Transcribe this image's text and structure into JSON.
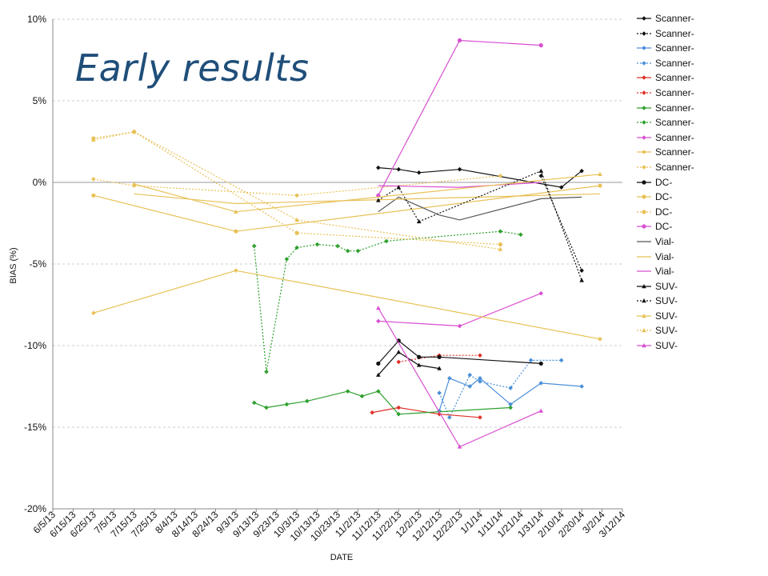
{
  "overlay_title": "Early results",
  "colors": {
    "black": "#111111",
    "blue": "#4a8fd9",
    "red": "#e0302a",
    "green": "#2ea02e",
    "magenta": "#d84fd0",
    "yellow": "#e8c157",
    "gray": "#555555",
    "grid": "#cccccc"
  },
  "chart_data": {
    "type": "line",
    "title": "",
    "xlabel": "DATE",
    "ylabel": "BIAS (%)",
    "ylim": [
      -20,
      10
    ],
    "yticks": [
      "10%",
      "5%",
      "0%",
      "-5%",
      "-10%",
      "-15%",
      "-20%"
    ],
    "ytick_values": [
      10,
      5,
      0,
      -5,
      -10,
      -15,
      -20
    ],
    "xlim": [
      "2013-06-05",
      "2014-03-12"
    ],
    "xticks": [
      "6/5/13",
      "6/15/13",
      "6/25/13",
      "7/5/13",
      "7/15/13",
      "7/25/13",
      "8/4/13",
      "8/14/13",
      "8/24/13",
      "9/3/13",
      "9/13/13",
      "9/23/13",
      "10/3/13",
      "10/13/13",
      "10/23/13",
      "11/2/13",
      "11/12/13",
      "11/22/13",
      "12/2/13",
      "12/12/13",
      "12/22/13",
      "1/1/14",
      "1/11/14",
      "1/21/14",
      "1/31/14",
      "2/10/14",
      "2/20/14",
      "3/2/14",
      "3/12/14"
    ],
    "grid": "horizontal dashed",
    "legend_position": "right",
    "series": [
      {
        "name": "Scanner-",
        "color": "black",
        "dash": "solid",
        "marker": "diamond",
        "points": [
          [
            "2013-11-12",
            0.9
          ],
          [
            "2013-11-22",
            0.8
          ],
          [
            "2013-12-02",
            0.6
          ],
          [
            "2013-12-22",
            0.8
          ],
          [
            "2014-02-10",
            -0.3
          ],
          [
            "2014-02-20",
            0.7
          ]
        ]
      },
      {
        "name": "Scanner-",
        "color": "black",
        "dash": "dotted",
        "marker": "diamond",
        "points": [
          [
            "2014-01-31",
            0.4
          ],
          [
            "2014-02-20",
            -5.4
          ]
        ]
      },
      {
        "name": "Scanner-",
        "color": "blue",
        "dash": "solid",
        "marker": "diamond",
        "points": [
          [
            "2013-12-12",
            -14.0
          ],
          [
            "2013-12-17",
            -12.0
          ],
          [
            "2013-12-27",
            -12.5
          ],
          [
            "2014-01-01",
            -12.0
          ],
          [
            "2014-01-16",
            -13.6
          ],
          [
            "2014-01-31",
            -12.3
          ],
          [
            "2014-02-20",
            -12.5
          ]
        ]
      },
      {
        "name": "Scanner-",
        "color": "blue",
        "dash": "dotted",
        "marker": "diamond",
        "points": [
          [
            "2013-12-12",
            -12.9
          ],
          [
            "2013-12-17",
            -14.4
          ],
          [
            "2013-12-27",
            -11.8
          ],
          [
            "2014-01-01",
            -12.2
          ],
          [
            "2014-01-16",
            -12.6
          ],
          [
            "2014-01-26",
            -10.9
          ],
          [
            "2014-02-10",
            -10.9
          ]
        ]
      },
      {
        "name": "Scanner-",
        "color": "red",
        "dash": "solid",
        "marker": "diamond",
        "points": [
          [
            "2013-11-09",
            -14.1
          ],
          [
            "2013-11-22",
            -13.8
          ],
          [
            "2013-12-12",
            -14.2
          ],
          [
            "2014-01-01",
            -14.4
          ]
        ]
      },
      {
        "name": "Scanner-",
        "color": "red",
        "dash": "dotted",
        "marker": "diamond",
        "points": [
          [
            "2013-11-22",
            -11.0
          ],
          [
            "2013-12-12",
            -10.6
          ],
          [
            "2014-01-01",
            -10.6
          ]
        ]
      },
      {
        "name": "Scanner-",
        "color": "green",
        "dash": "solid",
        "marker": "diamond",
        "points": [
          [
            "2013-09-12",
            -13.5
          ],
          [
            "2013-09-18",
            -13.8
          ],
          [
            "2013-09-28",
            -13.6
          ],
          [
            "2013-10-08",
            -13.4
          ],
          [
            "2013-10-28",
            -12.8
          ],
          [
            "2013-11-04",
            -13.1
          ],
          [
            "2013-11-12",
            -12.8
          ],
          [
            "2013-11-22",
            -14.2
          ],
          [
            "2014-01-16",
            -13.8
          ]
        ]
      },
      {
        "name": "Scanner-",
        "color": "green",
        "dash": "dotted",
        "marker": "diamond",
        "points": [
          [
            "2013-09-12",
            -3.9
          ],
          [
            "2013-09-18",
            -11.6
          ],
          [
            "2013-09-28",
            -4.7
          ],
          [
            "2013-10-03",
            -4.0
          ],
          [
            "2013-10-13",
            -3.8
          ],
          [
            "2013-10-23",
            -3.9
          ],
          [
            "2013-10-28",
            -4.2
          ],
          [
            "2013-11-02",
            -4.2
          ],
          [
            "2013-11-16",
            -3.6
          ],
          [
            "2014-01-11",
            -3.0
          ],
          [
            "2014-01-21",
            -3.2
          ]
        ]
      },
      {
        "name": "Scanner-",
        "color": "magenta",
        "dash": "solid",
        "marker": "diamond",
        "points": [
          [
            "2013-11-12",
            -8.5
          ],
          [
            "2013-12-22",
            -8.8
          ],
          [
            "2014-01-31",
            -6.8
          ]
        ]
      },
      {
        "name": "Scanner-",
        "color": "yellow",
        "dash": "solid",
        "marker": "diamond",
        "points": [
          [
            "2013-06-25",
            -8.0
          ],
          [
            "2013-09-03",
            -5.4
          ],
          [
            "2014-03-01",
            -9.6
          ]
        ]
      },
      {
        "name": "Scanner-",
        "color": "yellow",
        "dash": "dotted",
        "marker": "diamond",
        "points": [
          [
            "2013-06-25",
            0.2
          ],
          [
            "2013-07-15",
            -0.2
          ],
          [
            "2013-10-03",
            -0.8
          ],
          [
            "2014-01-11",
            0.4
          ]
        ]
      },
      {
        "name": "DC-",
        "color": "black",
        "dash": "solid",
        "marker": "circle",
        "points": [
          [
            "2013-11-12",
            -11.1
          ],
          [
            "2013-11-22",
            -9.7
          ],
          [
            "2013-12-02",
            -10.7
          ],
          [
            "2013-12-12",
            -10.7
          ],
          [
            "2014-01-31",
            -11.1
          ]
        ]
      },
      {
        "name": "DC-",
        "color": "yellow",
        "dash": "solid",
        "marker": "circle",
        "points": [
          [
            "2013-06-25",
            -0.8
          ],
          [
            "2013-09-03",
            -3.0
          ],
          [
            "2014-03-01",
            -0.2
          ]
        ]
      },
      {
        "name": "DC-",
        "color": "yellow",
        "dash": "dotted",
        "marker": "circle",
        "points": [
          [
            "2013-06-25",
            2.7
          ],
          [
            "2013-07-15",
            3.1
          ],
          [
            "2013-10-03",
            -3.1
          ],
          [
            "2014-01-11",
            -3.8
          ]
        ]
      },
      {
        "name": "DC-",
        "color": "magenta",
        "dash": "solid",
        "marker": "circle",
        "points": [
          [
            "2013-11-12",
            -0.8
          ],
          [
            "2013-12-22",
            8.7
          ],
          [
            "2014-01-31",
            8.4
          ]
        ]
      },
      {
        "name": "Vial-",
        "color": "gray",
        "dash": "solid",
        "marker": "none",
        "points": [
          [
            "2013-11-12",
            -1.8
          ],
          [
            "2013-11-22",
            -0.9
          ],
          [
            "2013-12-12",
            -2.0
          ],
          [
            "2013-12-22",
            -2.3
          ],
          [
            "2014-01-31",
            -1.0
          ],
          [
            "2014-02-20",
            -0.9
          ]
        ]
      },
      {
        "name": "Vial-",
        "color": "yellow",
        "dash": "solid",
        "marker": "none",
        "points": [
          [
            "2013-07-15",
            -0.7
          ],
          [
            "2013-09-03",
            -1.3
          ],
          [
            "2014-03-01",
            -0.7
          ]
        ]
      },
      {
        "name": "Vial-",
        "color": "magenta",
        "dash": "solid",
        "marker": "none",
        "points": [
          [
            "2013-11-12",
            -0.2
          ],
          [
            "2013-12-22",
            -0.3
          ],
          [
            "2014-01-31",
            0.0
          ]
        ]
      },
      {
        "name": "SUV-",
        "color": "black",
        "dash": "solid",
        "marker": "triangle",
        "points": [
          [
            "2013-11-12",
            -11.8
          ],
          [
            "2013-11-22",
            -10.4
          ],
          [
            "2013-12-02",
            -11.2
          ],
          [
            "2013-12-12",
            -11.4
          ]
        ]
      },
      {
        "name": "SUV-",
        "color": "black",
        "dash": "dotted",
        "marker": "triangle",
        "points": [
          [
            "2013-11-12",
            -1.1
          ],
          [
            "2013-11-22",
            -0.3
          ],
          [
            "2013-12-02",
            -2.4
          ],
          [
            "2014-01-31",
            0.7
          ],
          [
            "2014-02-20",
            -6.0
          ]
        ]
      },
      {
        "name": "SUV-",
        "color": "yellow",
        "dash": "solid",
        "marker": "triangle",
        "points": [
          [
            "2013-07-15",
            -0.1
          ],
          [
            "2013-09-03",
            -1.8
          ],
          [
            "2014-03-01",
            0.5
          ]
        ]
      },
      {
        "name": "SUV-",
        "color": "yellow",
        "dash": "dotted",
        "marker": "triangle",
        "points": [
          [
            "2013-06-25",
            2.6
          ],
          [
            "2013-07-15",
            3.1
          ],
          [
            "2013-10-03",
            -2.3
          ],
          [
            "2014-01-11",
            -4.1
          ]
        ]
      },
      {
        "name": "SUV-",
        "color": "magenta",
        "dash": "solid",
        "marker": "triangle",
        "points": [
          [
            "2013-11-12",
            -7.7
          ],
          [
            "2013-12-22",
            -16.2
          ],
          [
            "2014-01-31",
            -14.0
          ]
        ]
      }
    ]
  }
}
